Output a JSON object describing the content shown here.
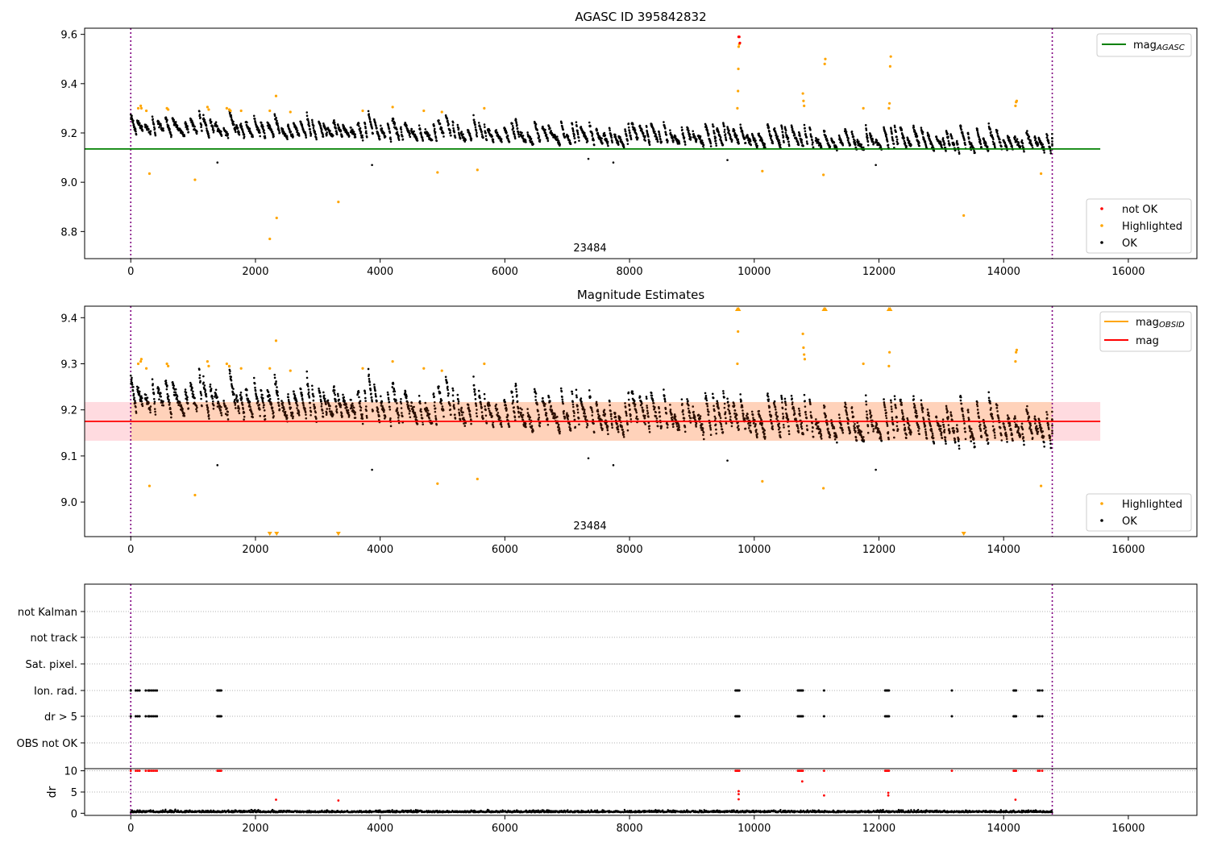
{
  "chart_data": [
    {
      "type": "scatter",
      "title": "AGASC ID 395842832",
      "xlim": [
        -740,
        17100
      ],
      "ylim": [
        8.69,
        9.625
      ],
      "x_ticks": [
        "0",
        "2000",
        "4000",
        "6000",
        "8000",
        "10000",
        "12000",
        "14000",
        "16000"
      ],
      "y_ticks": [
        "8.8",
        "9.0",
        "9.2",
        "9.4",
        "9.6"
      ],
      "annotation": "23484",
      "obsid_boundaries": [
        0,
        14780
      ],
      "reference_line": {
        "name": "mag_AGASC",
        "label_main": "mag",
        "label_sub": "AGASC",
        "y": 9.135,
        "x_range": [
          -740,
          15550
        ],
        "color": "#008000"
      },
      "legend_lines": [
        {
          "label_main": "mag",
          "label_sub": "AGASC",
          "color": "#008000"
        }
      ],
      "legend_points": [
        {
          "label": "not OK",
          "color": "#ff0000"
        },
        {
          "label": "Highlighted",
          "color": "#ffa500"
        },
        {
          "label": "OK",
          "color": "#000000"
        }
      ],
      "series": [
        {
          "name": "OK",
          "color": "#000000",
          "description": "dense time series of black dots, baseline ~9.20 decreasing to ~9.13, scatter 9.08–9.30 across x = 0–14780"
        },
        {
          "name": "Highlighted",
          "color": "#ffa500",
          "points": [
            [
              120,
              9.3
            ],
            [
              160,
              9.31
            ],
            [
              170,
              9.3
            ],
            [
              250,
              9.29
            ],
            [
              300,
              9.035
            ],
            [
              580,
              9.3
            ],
            [
              600,
              9.295
            ],
            [
              1030,
              9.01
            ],
            [
              1230,
              9.305
            ],
            [
              1250,
              9.295
            ],
            [
              1540,
              9.3
            ],
            [
              1580,
              9.295
            ],
            [
              1600,
              9.29
            ],
            [
              1770,
              9.29
            ],
            [
              2230,
              8.77
            ],
            [
              2230,
              9.29
            ],
            [
              2330,
              9.35
            ],
            [
              2340,
              8.855
            ],
            [
              2560,
              9.285
            ],
            [
              3330,
              8.92
            ],
            [
              3720,
              9.29
            ],
            [
              4200,
              9.305
            ],
            [
              4700,
              9.29
            ],
            [
              4920,
              9.04
            ],
            [
              4990,
              9.285
            ],
            [
              5560,
              9.05
            ],
            [
              5670,
              9.3
            ],
            [
              9730,
              9.3
            ],
            [
              9740,
              9.37
            ],
            [
              9745,
              9.46
            ],
            [
              9750,
              9.55
            ],
            [
              9760,
              9.56
            ],
            [
              10130,
              9.045
            ],
            [
              10780,
              9.36
            ],
            [
              10790,
              9.33
            ],
            [
              10800,
              9.31
            ],
            [
              11110,
              9.03
            ],
            [
              11130,
              9.48
            ],
            [
              11140,
              9.5
            ],
            [
              11750,
              9.3
            ],
            [
              12160,
              9.3
            ],
            [
              12170,
              9.32
            ],
            [
              12180,
              9.47
            ],
            [
              12190,
              9.51
            ],
            [
              13360,
              8.865
            ],
            [
              14190,
              9.31
            ],
            [
              14200,
              9.325
            ],
            [
              14210,
              9.33
            ],
            [
              14600,
              9.035
            ]
          ]
        },
        {
          "name": "not OK",
          "color": "#ff0000",
          "points": [
            [
              9750,
              9.59
            ],
            [
              9760,
              9.59
            ],
            [
              9770,
              9.565
            ]
          ]
        }
      ]
    },
    {
      "type": "scatter",
      "title": "Magnitude Estimates",
      "xlim": [
        -740,
        17100
      ],
      "ylim": [
        8.925,
        9.425
      ],
      "x_ticks": [
        "0",
        "2000",
        "4000",
        "6000",
        "8000",
        "10000",
        "12000",
        "14000",
        "16000"
      ],
      "y_ticks": [
        "9.0",
        "9.1",
        "9.2",
        "9.3",
        "9.4"
      ],
      "annotation": "23484",
      "obsid_boundaries": [
        0,
        14780
      ],
      "band": {
        "y_low": 9.133,
        "y_high": 9.217,
        "x_range": [
          -740,
          15550
        ]
      },
      "mag_line": {
        "y": 9.175,
        "color": "#ff0000"
      },
      "mag_obsid_line": {
        "y": 9.175,
        "color": "#ffa500"
      },
      "legend_lines": [
        {
          "label_main": "mag",
          "label_sub": "OBSID",
          "color": "#ffa500"
        },
        {
          "label_main": "mag",
          "label_sub": "",
          "color": "#ff0000"
        }
      ],
      "legend_points": [
        {
          "label": "Highlighted",
          "color": "#ffa500"
        },
        {
          "label": "OK",
          "color": "#000000"
        }
      ],
      "series": [
        {
          "name": "OK",
          "color": "#000000",
          "description": "dense time series of black dots, 9.07–9.30"
        },
        {
          "name": "Highlighted",
          "color": "#ffa500",
          "points": [
            [
              120,
              9.3
            ],
            [
              160,
              9.305
            ],
            [
              170,
              9.31
            ],
            [
              250,
              9.29
            ],
            [
              300,
              9.035
            ],
            [
              580,
              9.3
            ],
            [
              600,
              9.295
            ],
            [
              1030,
              9.015
            ],
            [
              1230,
              9.305
            ],
            [
              1250,
              9.295
            ],
            [
              1540,
              9.3
            ],
            [
              1580,
              9.295
            ],
            [
              1770,
              9.29
            ],
            [
              2230,
              9.29
            ],
            [
              2330,
              9.35
            ],
            [
              2560,
              9.285
            ],
            [
              3720,
              9.29
            ],
            [
              4200,
              9.305
            ],
            [
              4700,
              9.29
            ],
            [
              4920,
              9.04
            ],
            [
              4990,
              9.285
            ],
            [
              5560,
              9.05
            ],
            [
              5670,
              9.3
            ],
            [
              9730,
              9.3
            ],
            [
              9740,
              9.37
            ],
            [
              10130,
              9.045
            ],
            [
              10780,
              9.365
            ],
            [
              10790,
              9.335
            ],
            [
              10800,
              9.32
            ],
            [
              10810,
              9.31
            ],
            [
              11110,
              9.03
            ],
            [
              11750,
              9.3
            ],
            [
              12160,
              9.295
            ],
            [
              12170,
              9.325
            ],
            [
              14190,
              9.305
            ],
            [
              14200,
              9.325
            ],
            [
              14210,
              9.33
            ],
            [
              14600,
              9.035
            ]
          ]
        },
        {
          "name": "Highlighted (above range)",
          "color": "#ffa500",
          "marker": "triangle-up",
          "x": [
            9730,
            9750,
            11120,
            11140,
            12160,
            12180
          ]
        },
        {
          "name": "Highlighted (below range)",
          "color": "#ffa500",
          "marker": "triangle-down",
          "x": [
            2230,
            2340,
            3330,
            13360
          ]
        }
      ]
    },
    {
      "type": "scatter",
      "title": "",
      "xlim": [
        -740,
        17100
      ],
      "x_ticks": [
        "0",
        "2000",
        "4000",
        "6000",
        "8000",
        "10000",
        "12000",
        "14000",
        "16000"
      ],
      "obsid_boundaries": [
        0,
        14780
      ],
      "flag_rows": [
        "not Kalman",
        "not track",
        "Sat. pixel.",
        "Ion. rad.",
        "dr > 5",
        "OBS not OK"
      ],
      "flag_points": {
        "Ion. rad.": [
          0,
          80,
          110,
          140,
          240,
          280,
          300,
          330,
          360,
          390,
          420,
          1390,
          1410,
          1430,
          1450,
          9700,
          9720,
          9740,
          9760,
          10700,
          10720,
          10740,
          10760,
          10780,
          11120,
          12100,
          12120,
          12140,
          12160,
          13170,
          14160,
          14180,
          14200,
          14550,
          14580,
          14620
        ],
        "dr > 5": [
          0,
          80,
          110,
          140,
          240,
          280,
          300,
          330,
          360,
          390,
          420,
          1390,
          1410,
          1430,
          1450,
          9700,
          9720,
          9740,
          9760,
          10700,
          10720,
          10740,
          10760,
          10780,
          11120,
          12100,
          12120,
          12140,
          12160,
          13170,
          14160,
          14180,
          14200,
          14550,
          14580,
          14620
        ]
      },
      "dr_panel": {
        "ylabel": "dr",
        "ylim": [
          -0.5,
          10.5
        ],
        "y_ticks": [
          "0",
          "5",
          "10"
        ],
        "series_ok": {
          "color": "#000000",
          "description": "dr values mostly 0–1.5 across 0–14780"
        },
        "series_not_ok": {
          "color": "#ff0000",
          "points": [
            [
              0,
              10
            ],
            [
              80,
              10
            ],
            [
              110,
              10
            ],
            [
              140,
              10
            ],
            [
              240,
              10
            ],
            [
              280,
              10
            ],
            [
              300,
              10
            ],
            [
              330,
              10
            ],
            [
              360,
              10
            ],
            [
              390,
              10
            ],
            [
              420,
              10
            ],
            [
              1390,
              10
            ],
            [
              1410,
              10
            ],
            [
              1430,
              10
            ],
            [
              1450,
              10
            ],
            [
              2330,
              3.2
            ],
            [
              3330,
              3.0
            ],
            [
              9700,
              10
            ],
            [
              9720,
              10
            ],
            [
              9740,
              10
            ],
            [
              9760,
              10
            ],
            [
              9750,
              5.2
            ],
            [
              9750,
              4.5
            ],
            [
              9750,
              3.3
            ],
            [
              10700,
              10
            ],
            [
              10720,
              10
            ],
            [
              10740,
              10
            ],
            [
              10760,
              10
            ],
            [
              10780,
              10
            ],
            [
              10770,
              7.5
            ],
            [
              11120,
              10
            ],
            [
              11120,
              4.2
            ],
            [
              12100,
              10
            ],
            [
              12120,
              10
            ],
            [
              12140,
              10
            ],
            [
              12160,
              10
            ],
            [
              12150,
              4.8
            ],
            [
              12150,
              4.2
            ],
            [
              13170,
              10
            ],
            [
              14160,
              10
            ],
            [
              14180,
              10
            ],
            [
              14200,
              10
            ],
            [
              14190,
              3.2
            ],
            [
              14550,
              10
            ],
            [
              14580,
              10
            ],
            [
              14620,
              10
            ]
          ]
        }
      }
    }
  ]
}
